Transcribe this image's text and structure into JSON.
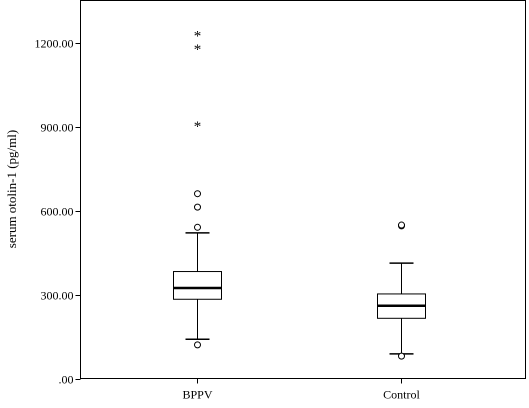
{
  "chart_data": {
    "type": "boxplot",
    "title": "",
    "xlabel": "",
    "ylabel": "serum otolin-1 (pg/ml)",
    "ylim": [
      0,
      1350
    ],
    "yticks": [
      0,
      300,
      600,
      900,
      1200
    ],
    "ytick_labels": [
      ".00",
      "300.00",
      "600.00",
      "900.00",
      "1200.00"
    ],
    "grid": false,
    "categories": [
      "BPPV",
      "Control"
    ],
    "boxes": [
      {
        "category": "BPPV",
        "whisker_low": 140,
        "q1": 283,
        "median": 323,
        "q3": 382,
        "whisker_high": 520,
        "outliers": [
          120,
          540,
          612,
          660
        ],
        "extremes": [
          905,
          1180,
          1228
        ]
      },
      {
        "category": "Control",
        "whisker_low": 88,
        "q1": 215,
        "median": 260,
        "q3": 302,
        "whisker_high": 412,
        "outliers": [
          80,
          545,
          548
        ],
        "extremes": []
      }
    ]
  }
}
